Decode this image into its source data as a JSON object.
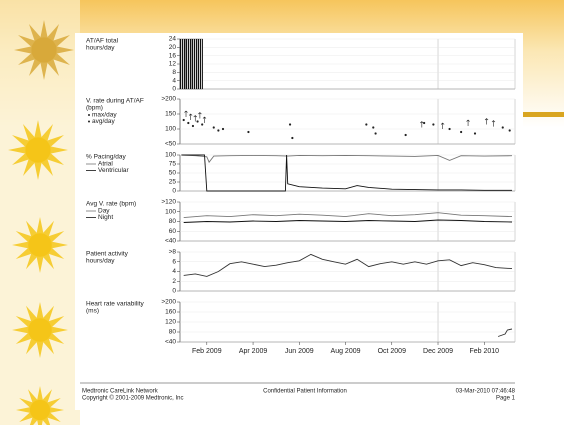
{
  "chart_data": [
    {
      "type": "bar",
      "title": [
        "AT/AF total",
        "hours/day"
      ],
      "series": [
        {
          "name": null,
          "color": "#111",
          "x": [
            0.95,
            1.2,
            1.45,
            1.7
          ],
          "values": [
            24,
            24,
            24,
            24
          ]
        }
      ],
      "ylim": [
        0,
        24
      ],
      "yticks": [
        0,
        4,
        8,
        12,
        16,
        20,
        24
      ]
    },
    {
      "type": "scatter",
      "title": [
        "V. rate during AT/AF",
        "(bpm)"
      ],
      "legend": true,
      "series": [
        {
          "name": "max/day",
          "color": "#222",
          "marker": "tick",
          "x": [
            1.1,
            1.3,
            1.5,
            1.7,
            1.9,
            11.3,
            12.2,
            13.3,
            14.1,
            14.4
          ],
          "values": [
            160,
            150,
            145,
            155,
            140,
            125,
            120,
            130,
            135,
            128
          ]
        },
        {
          "name": "avg/day",
          "color": "#222",
          "marker": "dot",
          "x": [
            1.0,
            1.2,
            1.4,
            1.6,
            1.8,
            2.3,
            2.5,
            2.7,
            3.8,
            5.6,
            5.7,
            8.9,
            9.2,
            9.3,
            10.6,
            11.4,
            11.8,
            12.5,
            13.0,
            13.6,
            14.8,
            15.1
          ],
          "values": [
            130,
            120,
            110,
            125,
            115,
            105,
            95,
            100,
            90,
            115,
            70,
            115,
            105,
            85,
            80,
            120,
            115,
            100,
            90,
            85,
            105,
            95
          ]
        }
      ],
      "ylim": [
        50,
        200
      ],
      "yticks": [
        {
          "value": 200,
          "label": ">200"
        },
        150,
        100,
        {
          "value": 50,
          "label": "<50"
        }
      ]
    },
    {
      "type": "line",
      "title": [
        "% Pacing/day"
      ],
      "legend": true,
      "series": [
        {
          "name": "Atrial",
          "color": "#777",
          "x": [
            0.9,
            1.5,
            2.0,
            2.1,
            2.3,
            3,
            4,
            5,
            5.5,
            6,
            7,
            8,
            9,
            10,
            11,
            12,
            12.5,
            13,
            14,
            15.2
          ],
          "values": [
            100,
            98,
            95,
            80,
            97,
            98,
            99,
            98,
            97,
            99,
            98,
            99,
            98,
            97,
            96,
            99,
            85,
            98,
            97,
            98
          ]
        },
        {
          "name": "Ventricular",
          "color": "#111",
          "x": [
            0.9,
            1.9,
            2.0,
            5.4,
            5.45,
            5.5,
            6,
            7,
            8,
            8.5,
            9,
            10,
            11,
            12,
            13,
            14,
            15.2
          ],
          "values": [
            100,
            100,
            0,
            0,
            100,
            20,
            12,
            8,
            6,
            15,
            10,
            5,
            4,
            3,
            3,
            2,
            2
          ]
        }
      ],
      "ylim": [
        0,
        100
      ],
      "yticks": [
        0,
        25,
        50,
        75,
        100
      ]
    },
    {
      "type": "line",
      "title": [
        "Avg V. rate (bpm)"
      ],
      "legend": true,
      "series": [
        {
          "name": "Day",
          "color": "#777",
          "x": [
            1,
            2,
            3,
            4,
            5,
            6,
            7,
            8,
            9,
            10,
            11,
            12,
            13,
            14,
            15.2
          ],
          "values": [
            88,
            92,
            90,
            94,
            92,
            95,
            93,
            90,
            96,
            92,
            94,
            98,
            93,
            92,
            90
          ]
        },
        {
          "name": "Night",
          "color": "#111",
          "x": [
            1,
            2,
            3,
            4,
            5,
            6,
            7,
            8,
            9,
            10,
            11,
            12,
            13,
            14,
            15.2
          ],
          "values": [
            78,
            80,
            79,
            81,
            80,
            82,
            81,
            80,
            82,
            81,
            80,
            83,
            82,
            80,
            79
          ]
        }
      ],
      "ylim": [
        40,
        120
      ],
      "yticks": [
        {
          "value": 120,
          "label": ">120"
        },
        100,
        80,
        60,
        {
          "value": 40,
          "label": "<40"
        }
      ]
    },
    {
      "type": "line",
      "title": [
        "Patient activity",
        "hours/day"
      ],
      "series": [
        {
          "name": null,
          "color": "#333",
          "x": [
            1,
            1.5,
            2,
            2.5,
            3,
            3.5,
            4,
            4.5,
            5,
            5.5,
            6,
            6.5,
            7,
            7.5,
            8,
            8.5,
            9,
            9.5,
            10,
            10.5,
            11,
            11.5,
            12,
            12.5,
            13,
            13.5,
            14,
            14.5,
            15.2
          ],
          "values": [
            3.2,
            3.5,
            3,
            4,
            5.6,
            6,
            5.5,
            5,
            5.3,
            5.8,
            6.2,
            7.5,
            6.5,
            6,
            5.5,
            6.5,
            5,
            5.6,
            6,
            5.5,
            6,
            5.5,
            6.2,
            6.4,
            5.2,
            5.8,
            5.4,
            4.8,
            4.6
          ]
        }
      ],
      "ylim": [
        0,
        8
      ],
      "yticks": [
        0,
        2,
        4,
        6,
        {
          "value": 8,
          "label": ">8"
        }
      ]
    },
    {
      "type": "line",
      "title": [
        "Heart rate variability",
        "(ms)"
      ],
      "series": [
        {
          "name": null,
          "color": "#333",
          "x": [
            14.6,
            14.9,
            15.0,
            15.2
          ],
          "values": [
            62,
            72,
            88,
            92
          ]
        }
      ],
      "ylim": [
        40,
        200
      ],
      "yticks": [
        {
          "value": 40,
          "label": "<40"
        },
        80,
        120,
        160,
        {
          "value": 200,
          "label": ">200"
        }
      ],
      "xlim": [
        0.84,
        15.33
      ],
      "xticks": [
        {
          "value": 2,
          "label": "Feb 2009"
        },
        {
          "value": 4,
          "label": "Apr 2009"
        },
        {
          "value": 6,
          "label": "Jun 2009"
        },
        {
          "value": 8,
          "label": "Aug 2009"
        },
        {
          "value": 10,
          "label": "Oct 2009"
        },
        {
          "value": 12,
          "label": "Dec 2009"
        },
        {
          "value": 14,
          "label": "Feb 2010"
        }
      ]
    }
  ],
  "footer": {
    "left": [
      "Medtronic CareLink Network",
      "Copyright © 2001-2009 Medtronic, Inc"
    ],
    "center": "Confidential Patient Information",
    "right": [
      "03-Mar-2010 07:46:48",
      "Page 1"
    ]
  }
}
